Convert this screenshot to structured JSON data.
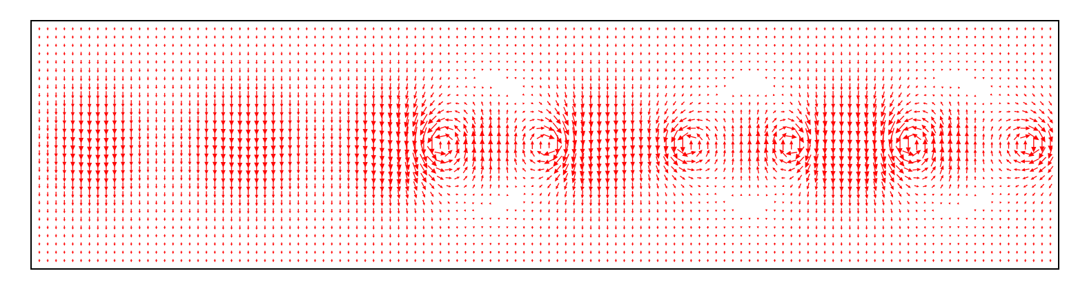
{
  "chart_data": {
    "type": "quiver",
    "title": "",
    "xlabel": "",
    "ylabel": "",
    "xlim": [
      0,
      1
    ],
    "ylim": [
      0,
      1
    ],
    "grid": false,
    "legend": "none",
    "arrow_color": "#ff0000",
    "frame_color": "#000000",
    "background_color": "#ffffff",
    "field": {
      "columns": 122,
      "rows": 29,
      "band_center": 0.5,
      "band_sigma": 0.17,
      "base_downflow": 0.25,
      "regions": [
        {
          "kind": "jet",
          "center": 0.055,
          "width": 0.045,
          "direction": "down",
          "strength": 1.0
        },
        {
          "kind": "jet",
          "center": 0.205,
          "width": 0.06,
          "direction": "down",
          "strength": 1.0
        },
        {
          "kind": "jet",
          "center": 0.345,
          "width": 0.045,
          "direction": "down",
          "strength": 1.0
        },
        {
          "kind": "jet",
          "center": 0.445,
          "width": 0.035,
          "direction": "up",
          "strength": 0.9
        },
        {
          "kind": "jet",
          "center": 0.555,
          "width": 0.045,
          "direction": "down",
          "strength": 1.0
        },
        {
          "kind": "jet",
          "center": 0.705,
          "width": 0.035,
          "direction": "up",
          "strength": 0.9
        },
        {
          "kind": "jet",
          "center": 0.8,
          "width": 0.05,
          "direction": "down",
          "strength": 1.0
        },
        {
          "kind": "jet",
          "center": 0.905,
          "width": 0.035,
          "direction": "up",
          "strength": 0.9
        }
      ],
      "vortices": [
        {
          "center_x": 0.395,
          "center_y": 0.5,
          "radius": 0.06,
          "rotation": "ccw"
        },
        {
          "center_x": 0.505,
          "center_y": 0.5,
          "radius": 0.05,
          "rotation": "cw"
        },
        {
          "center_x": 0.64,
          "center_y": 0.5,
          "radius": 0.05,
          "rotation": "ccw"
        },
        {
          "center_x": 0.745,
          "center_y": 0.5,
          "radius": 0.045,
          "rotation": "cw"
        },
        {
          "center_x": 0.86,
          "center_y": 0.5,
          "radius": 0.06,
          "rotation": "ccw"
        },
        {
          "center_x": 0.98,
          "center_y": 0.5,
          "radius": 0.055,
          "rotation": "cw"
        }
      ]
    }
  }
}
